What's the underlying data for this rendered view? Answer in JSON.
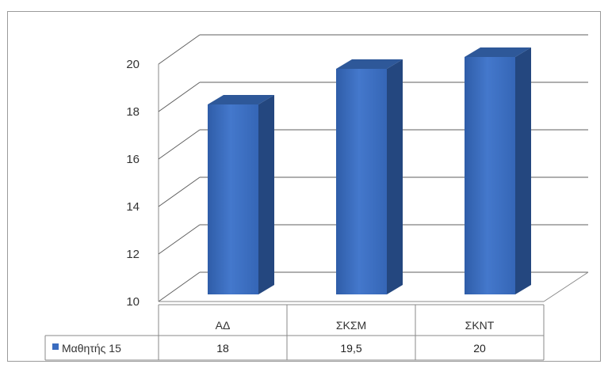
{
  "chart_data": {
    "type": "bar",
    "style": "3d-column",
    "categories": [
      "ΑΔ",
      "ΣΚΣΜ",
      "ΣΚΝΤ"
    ],
    "series": [
      {
        "name": "Μαθητής 15",
        "values": [
          18,
          19.5,
          20
        ],
        "value_labels": [
          "18",
          "19,5",
          "20"
        ],
        "color": "#3a6cc0"
      }
    ],
    "ylim": [
      10,
      20
    ],
    "yticks": [
      10,
      12,
      14,
      16,
      18,
      20
    ],
    "grid": true,
    "data_table": true,
    "legend": "data-table-row"
  },
  "colors": {
    "bar_front": "#3a6cc0",
    "bar_side": "#24477f",
    "bar_top": "#2e5899",
    "grid": "#5f5f5f",
    "frame": "#9a9a9a"
  }
}
